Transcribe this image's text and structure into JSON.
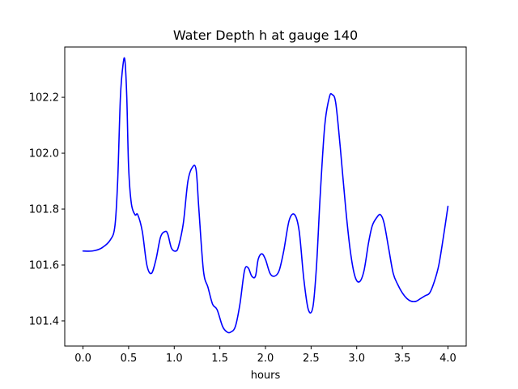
{
  "chart_data": {
    "type": "line",
    "title": "Water Depth h at gauge 140",
    "xlabel": "hours",
    "ylabel": "",
    "xlim": [
      -0.2,
      4.2
    ],
    "ylim": [
      101.31,
      102.38
    ],
    "xticks": [
      0.0,
      0.5,
      1.0,
      1.5,
      2.0,
      2.5,
      3.0,
      3.5,
      4.0
    ],
    "xtick_labels": [
      "0.0",
      "0.5",
      "1.0",
      "1.5",
      "2.0",
      "2.5",
      "3.0",
      "3.5",
      "4.0"
    ],
    "yticks": [
      101.4,
      101.6,
      101.8,
      102.0,
      102.2
    ],
    "ytick_labels": [
      "101.4",
      "101.6",
      "101.8",
      "102.0",
      "102.2"
    ],
    "grid": false,
    "series": [
      {
        "color": "#0000ff",
        "x": [
          0.0,
          0.1,
          0.2,
          0.3,
          0.35,
          0.38,
          0.41,
          0.44,
          0.46,
          0.48,
          0.5,
          0.53,
          0.57,
          0.6,
          0.65,
          0.7,
          0.75,
          0.8,
          0.85,
          0.9,
          0.93,
          0.97,
          1.02,
          1.05,
          1.1,
          1.15,
          1.2,
          1.24,
          1.27,
          1.32,
          1.37,
          1.42,
          1.47,
          1.53,
          1.58,
          1.62,
          1.67,
          1.72,
          1.77,
          1.81,
          1.85,
          1.89,
          1.92,
          1.96,
          2.0,
          2.05,
          2.1,
          2.15,
          2.2,
          2.26,
          2.32,
          2.37,
          2.42,
          2.47,
          2.52,
          2.56,
          2.6,
          2.65,
          2.7,
          2.73,
          2.77,
          2.82,
          2.88,
          2.93,
          2.98,
          3.03,
          3.08,
          3.13,
          3.17,
          3.22,
          3.26,
          3.3,
          3.35,
          3.4,
          3.45,
          3.5,
          3.55,
          3.6,
          3.65,
          3.7,
          3.75,
          3.8,
          3.85,
          3.9,
          3.95,
          4.0
        ],
        "y": [
          101.65,
          101.65,
          101.66,
          101.69,
          101.74,
          101.9,
          102.2,
          102.32,
          102.33,
          102.2,
          101.95,
          101.82,
          101.78,
          101.78,
          101.72,
          101.6,
          101.57,
          101.62,
          101.7,
          101.72,
          101.71,
          101.66,
          101.65,
          101.67,
          101.75,
          101.9,
          101.95,
          101.94,
          101.8,
          101.58,
          101.52,
          101.46,
          101.44,
          101.38,
          101.36,
          101.36,
          101.38,
          101.46,
          101.58,
          101.59,
          101.56,
          101.56,
          101.62,
          101.64,
          101.62,
          101.57,
          101.56,
          101.58,
          101.65,
          101.76,
          101.78,
          101.72,
          101.55,
          101.44,
          101.45,
          101.6,
          101.85,
          102.1,
          102.2,
          102.21,
          102.18,
          102.02,
          101.8,
          101.65,
          101.56,
          101.54,
          101.58,
          101.68,
          101.74,
          101.77,
          101.78,
          101.75,
          101.66,
          101.57,
          101.53,
          101.5,
          101.48,
          101.47,
          101.47,
          101.48,
          101.49,
          101.5,
          101.54,
          101.6,
          101.7,
          101.81
        ]
      }
    ]
  }
}
